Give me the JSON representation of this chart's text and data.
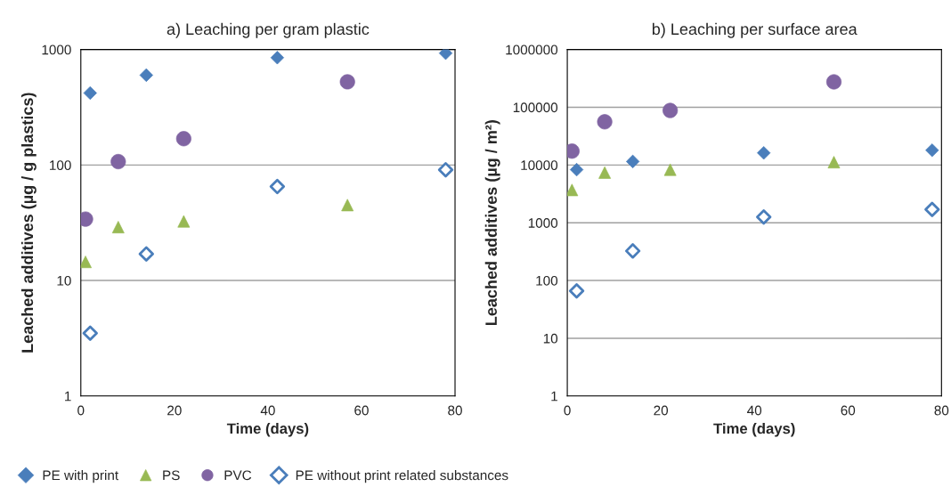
{
  "chart_data": [
    {
      "type": "scatter",
      "title": "a) Leaching per gram plastic",
      "xlabel": "Time (days)",
      "ylabel": "Leached additives (µg / g plastics)",
      "log": "y",
      "xlim": [
        0,
        80
      ],
      "xticks": [
        0,
        20,
        40,
        60,
        80
      ],
      "ylim": [
        1,
        1000
      ],
      "yticks": [
        1,
        10,
        100,
        1000
      ],
      "grid": "y",
      "legend": "bottom",
      "series": [
        {
          "name": "PE with print",
          "color": "#4a7ebb",
          "marker": "diamond",
          "x": [
            2,
            14,
            42,
            78
          ],
          "values": [
            420,
            600,
            850,
            930
          ]
        },
        {
          "name": "PS",
          "color": "#98b954",
          "marker": "triangle",
          "x": [
            1,
            8,
            22,
            57
          ],
          "values": [
            14.5,
            29,
            32.5,
            45
          ]
        },
        {
          "name": "PVC",
          "color": "#8064a2",
          "marker": "circle",
          "x": [
            1,
            8,
            22,
            57
          ],
          "values": [
            34,
            107,
            169,
            525
          ]
        },
        {
          "name": "PE without print related substances",
          "color": "#4a7ebb",
          "marker": "diamond",
          "x": [
            2,
            14,
            42,
            78
          ],
          "values": [
            3.5,
            17,
            65,
            91
          ]
        }
      ]
    },
    {
      "type": "scatter",
      "title": "b) Leaching per surface area",
      "xlabel": "Time (days)",
      "ylabel": "Leached additives (µg / m²)",
      "log": "y",
      "xlim": [
        0,
        80
      ],
      "xticks": [
        0,
        20,
        40,
        60,
        80
      ],
      "ylim": [
        1,
        1000000
      ],
      "yticks": [
        1,
        10,
        100,
        1000,
        10000,
        100000,
        1000000
      ],
      "grid": "y",
      "series": [
        {
          "color": "#4a7ebb",
          "marker": "diamond",
          "x": [
            2,
            14,
            42,
            78
          ],
          "values": [
            8300,
            11500,
            16200,
            18000
          ]
        },
        {
          "color": "#98b954",
          "marker": "triangle",
          "x": [
            1,
            8,
            22,
            57
          ],
          "values": [
            3700,
            7400,
            8300,
            11200
          ]
        },
        {
          "color": "#8064a2",
          "marker": "circle",
          "x": [
            1,
            8,
            22,
            57
          ],
          "values": [
            17400,
            56000,
            88000,
            275000
          ]
        },
        {
          "color": "#4a7ebb",
          "marker": "diamond",
          "x": [
            2,
            14,
            42,
            78
          ],
          "values": [
            66,
            325,
            1260,
            1700
          ]
        }
      ]
    }
  ]
}
